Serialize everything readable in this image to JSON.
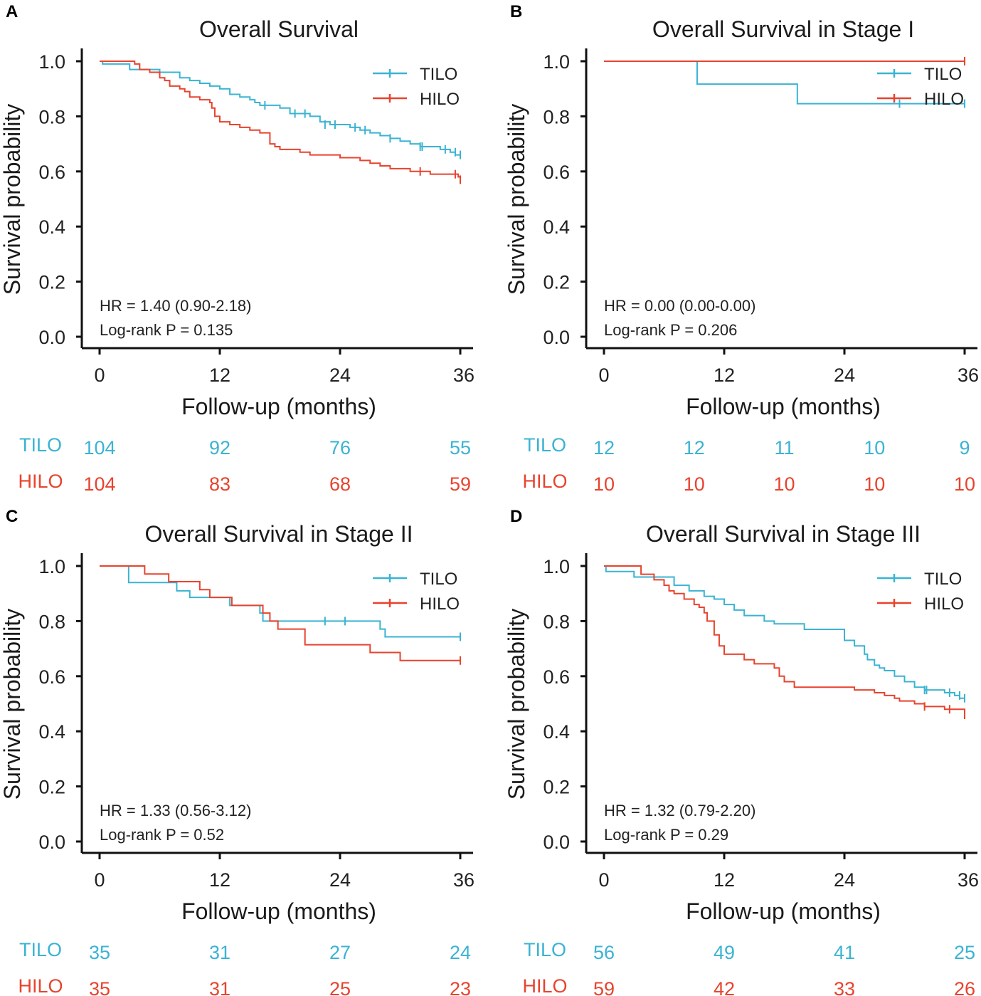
{
  "chart_data": [
    {
      "type": "line",
      "panel_label": "A",
      "title": "Overall Survival",
      "xlabel": "Follow-up (months)",
      "ylabel": "Survival probability",
      "xlim": [
        0,
        36
      ],
      "ylim": [
        0,
        1
      ],
      "x_ticks": [
        "0",
        "12",
        "24",
        "36"
      ],
      "y_ticks": [
        "0.0",
        "0.2",
        "0.4",
        "0.6",
        "0.8",
        "1.0"
      ],
      "legend": [
        "TILO",
        "HILO"
      ],
      "hr_text": "HR = 1.40 (0.90-2.18)",
      "p_text": "Log-rank P = 0.135",
      "series": [
        {
          "name": "TILO",
          "color": "#3BB3D3",
          "steps": [
            [
              0,
              1.0
            ],
            [
              0.3,
              0.99
            ],
            [
              3,
              0.97
            ],
            [
              6,
              0.96
            ],
            [
              8,
              0.94
            ],
            [
              9,
              0.93
            ],
            [
              10,
              0.92
            ],
            [
              11,
              0.91
            ],
            [
              12,
              0.9
            ],
            [
              13,
              0.88
            ],
            [
              14,
              0.87
            ],
            [
              15,
              0.86
            ],
            [
              15.5,
              0.85
            ],
            [
              16,
              0.84
            ],
            [
              18,
              0.83
            ],
            [
              19,
              0.81
            ],
            [
              21,
              0.8
            ],
            [
              22,
              0.78
            ],
            [
              23,
              0.77
            ],
            [
              25,
              0.76
            ],
            [
              26,
              0.75
            ],
            [
              27,
              0.74
            ],
            [
              28,
              0.73
            ],
            [
              29,
              0.72
            ],
            [
              30,
              0.71
            ],
            [
              31,
              0.7
            ],
            [
              32,
              0.69
            ],
            [
              34,
              0.68
            ],
            [
              35,
              0.67
            ],
            [
              35.5,
              0.66
            ],
            [
              36,
              0.66
            ]
          ],
          "censors": [
            [
              16.5,
              0.84
            ],
            [
              19.5,
              0.81
            ],
            [
              20.5,
              0.81
            ],
            [
              22.5,
              0.77
            ],
            [
              23.5,
              0.77
            ],
            [
              25.5,
              0.76
            ],
            [
              26.5,
              0.75
            ],
            [
              29,
              0.72
            ],
            [
              32,
              0.69
            ],
            [
              32.2,
              0.69
            ],
            [
              34.5,
              0.68
            ],
            [
              35.5,
              0.67
            ],
            [
              36,
              0.66
            ]
          ],
          "at_risk": [
            "104",
            "92",
            "76",
            "55"
          ]
        },
        {
          "name": "HILO",
          "color": "#E8432E",
          "steps": [
            [
              0,
              1.0
            ],
            [
              3.5,
              0.99
            ],
            [
              4,
              0.97
            ],
            [
              5,
              0.96
            ],
            [
              6,
              0.94
            ],
            [
              6.5,
              0.93
            ],
            [
              7,
              0.91
            ],
            [
              8,
              0.9
            ],
            [
              8.5,
              0.89
            ],
            [
              9,
              0.87
            ],
            [
              10,
              0.86
            ],
            [
              11,
              0.85
            ],
            [
              11.2,
              0.83
            ],
            [
              11.5,
              0.8
            ],
            [
              12,
              0.78
            ],
            [
              13,
              0.77
            ],
            [
              14,
              0.76
            ],
            [
              15,
              0.75
            ],
            [
              16,
              0.74
            ],
            [
              17,
              0.7
            ],
            [
              17.5,
              0.69
            ],
            [
              18,
              0.68
            ],
            [
              20,
              0.67
            ],
            [
              21,
              0.66
            ],
            [
              24,
              0.65
            ],
            [
              26,
              0.64
            ],
            [
              27,
              0.63
            ],
            [
              28,
              0.62
            ],
            [
              29,
              0.61
            ],
            [
              31,
              0.6
            ],
            [
              33,
              0.59
            ],
            [
              35.8,
              0.58
            ],
            [
              36,
              0.57
            ]
          ],
          "censors": [
            [
              32,
              0.6
            ],
            [
              35.5,
              0.59
            ],
            [
              36,
              0.57
            ]
          ],
          "at_risk": [
            "104",
            "83",
            "68",
            "59"
          ]
        }
      ],
      "at_risk_times": [
        0,
        12,
        24,
        36
      ]
    },
    {
      "type": "line",
      "panel_label": "B",
      "title": "Overall Survival in Stage I",
      "xlabel": "Follow-up (months)",
      "ylabel": "Survival probability",
      "xlim": [
        0,
        36
      ],
      "ylim": [
        0,
        1
      ],
      "x_ticks": [
        "0",
        "12",
        "24",
        "36"
      ],
      "y_ticks": [
        "0.0",
        "0.2",
        "0.4",
        "0.6",
        "0.8",
        "1.0"
      ],
      "legend": [
        "TILO",
        "HILO"
      ],
      "hr_text": "HR = 0.00 (0.00-0.00)",
      "p_text": "Log-rank P = 0.206",
      "series": [
        {
          "name": "TILO",
          "color": "#3BB3D3",
          "steps": [
            [
              0,
              1.0
            ],
            [
              9.3,
              0.917
            ],
            [
              19.3,
              0.846
            ],
            [
              36,
              0.846
            ]
          ],
          "censors": [
            [
              29.5,
              0.846
            ],
            [
              36,
              0.846
            ]
          ],
          "at_risk": [
            "12",
            "12",
            "11",
            "10",
            "9"
          ]
        },
        {
          "name": "HILO",
          "color": "#E8432E",
          "steps": [
            [
              0,
              1.0
            ],
            [
              36,
              1.0
            ]
          ],
          "censors": [
            [
              36,
              1.0
            ]
          ],
          "at_risk": [
            "10",
            "10",
            "10",
            "10",
            "10"
          ]
        }
      ],
      "at_risk_times": [
        0,
        9,
        18,
        27,
        36
      ]
    },
    {
      "type": "line",
      "panel_label": "C",
      "title": "Overall Survival in Stage II",
      "xlabel": "Follow-up (months)",
      "ylabel": "Survival probability",
      "xlim": [
        0,
        36
      ],
      "ylim": [
        0,
        1
      ],
      "x_ticks": [
        "0",
        "12",
        "24",
        "36"
      ],
      "y_ticks": [
        "0.0",
        "0.2",
        "0.4",
        "0.6",
        "0.8",
        "1.0"
      ],
      "legend": [
        "TILO",
        "HILO"
      ],
      "hr_text": "HR = 1.33 (0.56-3.12)",
      "p_text": "Log-rank P = 0.52",
      "series": [
        {
          "name": "TILO",
          "color": "#3BB3D3",
          "steps": [
            [
              0,
              1.0
            ],
            [
              2.9,
              0.94
            ],
            [
              7.7,
              0.91
            ],
            [
              9,
              0.886
            ],
            [
              13,
              0.857
            ],
            [
              16,
              0.829
            ],
            [
              16.3,
              0.8
            ],
            [
              28,
              0.771
            ],
            [
              28.5,
              0.743
            ],
            [
              36,
              0.743
            ]
          ],
          "censors": [
            [
              22.5,
              0.8
            ],
            [
              24.5,
              0.8
            ],
            [
              36,
              0.743
            ]
          ],
          "at_risk": [
            "35",
            "31",
            "27",
            "24"
          ]
        },
        {
          "name": "HILO",
          "color": "#E8432E",
          "steps": [
            [
              0,
              1.0
            ],
            [
              4.5,
              0.971
            ],
            [
              6.9,
              0.943
            ],
            [
              10,
              0.914
            ],
            [
              11,
              0.886
            ],
            [
              13.2,
              0.857
            ],
            [
              16.3,
              0.829
            ],
            [
              17,
              0.8
            ],
            [
              17.8,
              0.771
            ],
            [
              20.5,
              0.714
            ],
            [
              24,
              0.714
            ],
            [
              27,
              0.686
            ],
            [
              30,
              0.657
            ],
            [
              36,
              0.657
            ]
          ],
          "censors": [
            [
              36,
              0.657
            ]
          ],
          "at_risk": [
            "35",
            "31",
            "25",
            "23"
          ]
        }
      ],
      "at_risk_times": [
        0,
        12,
        24,
        36
      ]
    },
    {
      "type": "line",
      "panel_label": "D",
      "title": "Overall Survival in Stage III",
      "xlabel": "Follow-up (months)",
      "ylabel": "Survival probability",
      "xlim": [
        0,
        36
      ],
      "ylim": [
        0,
        1
      ],
      "x_ticks": [
        "0",
        "12",
        "24",
        "36"
      ],
      "y_ticks": [
        "0.0",
        "0.2",
        "0.4",
        "0.6",
        "0.8",
        "1.0"
      ],
      "legend": [
        "TILO",
        "HILO"
      ],
      "hr_text": "HR = 1.32 (0.79-2.20)",
      "p_text": "Log-rank P = 0.29",
      "series": [
        {
          "name": "TILO",
          "color": "#3BB3D3",
          "steps": [
            [
              0,
              1.0
            ],
            [
              0.2,
              0.98
            ],
            [
              3,
              0.96
            ],
            [
              7,
              0.93
            ],
            [
              8.5,
              0.91
            ],
            [
              10,
              0.89
            ],
            [
              11,
              0.88
            ],
            [
              12,
              0.86
            ],
            [
              13,
              0.84
            ],
            [
              14,
              0.82
            ],
            [
              16,
              0.8
            ],
            [
              17,
              0.79
            ],
            [
              20,
              0.77
            ],
            [
              24,
              0.73
            ],
            [
              25,
              0.71
            ],
            [
              26,
              0.68
            ],
            [
              26.3,
              0.66
            ],
            [
              27,
              0.64
            ],
            [
              27.5,
              0.63
            ],
            [
              28,
              0.62
            ],
            [
              29,
              0.6
            ],
            [
              30,
              0.58
            ],
            [
              31,
              0.56
            ],
            [
              32,
              0.55
            ],
            [
              34,
              0.54
            ],
            [
              35,
              0.53
            ],
            [
              35.5,
              0.52
            ],
            [
              36,
              0.52
            ]
          ],
          "censors": [
            [
              32,
              0.55
            ],
            [
              32.2,
              0.55
            ],
            [
              34.5,
              0.54
            ],
            [
              35.5,
              0.53
            ],
            [
              36,
              0.52
            ]
          ],
          "at_risk": [
            "56",
            "49",
            "41",
            "25"
          ]
        },
        {
          "name": "HILO",
          "color": "#E8432E",
          "steps": [
            [
              0,
              1.0
            ],
            [
              3.7,
              0.97
            ],
            [
              5,
              0.95
            ],
            [
              6,
              0.93
            ],
            [
              6.5,
              0.91
            ],
            [
              7,
              0.9
            ],
            [
              8,
              0.88
            ],
            [
              9,
              0.86
            ],
            [
              9.5,
              0.85
            ],
            [
              10,
              0.83
            ],
            [
              10.3,
              0.8
            ],
            [
              11,
              0.75
            ],
            [
              11.5,
              0.71
            ],
            [
              12,
              0.68
            ],
            [
              14,
              0.66
            ],
            [
              15,
              0.645
            ],
            [
              17,
              0.63
            ],
            [
              17.5,
              0.6
            ],
            [
              18,
              0.58
            ],
            [
              19,
              0.56
            ],
            [
              25,
              0.55
            ],
            [
              27,
              0.54
            ],
            [
              28,
              0.53
            ],
            [
              29,
              0.52
            ],
            [
              29.5,
              0.51
            ],
            [
              31,
              0.5
            ],
            [
              32,
              0.49
            ],
            [
              34,
              0.48
            ],
            [
              36,
              0.46
            ]
          ],
          "censors": [
            [
              32,
              0.49
            ],
            [
              34.5,
              0.48
            ],
            [
              36,
              0.46
            ]
          ],
          "at_risk": [
            "59",
            "42",
            "33",
            "26"
          ]
        }
      ],
      "at_risk_times": [
        0,
        12,
        24,
        36
      ]
    }
  ]
}
